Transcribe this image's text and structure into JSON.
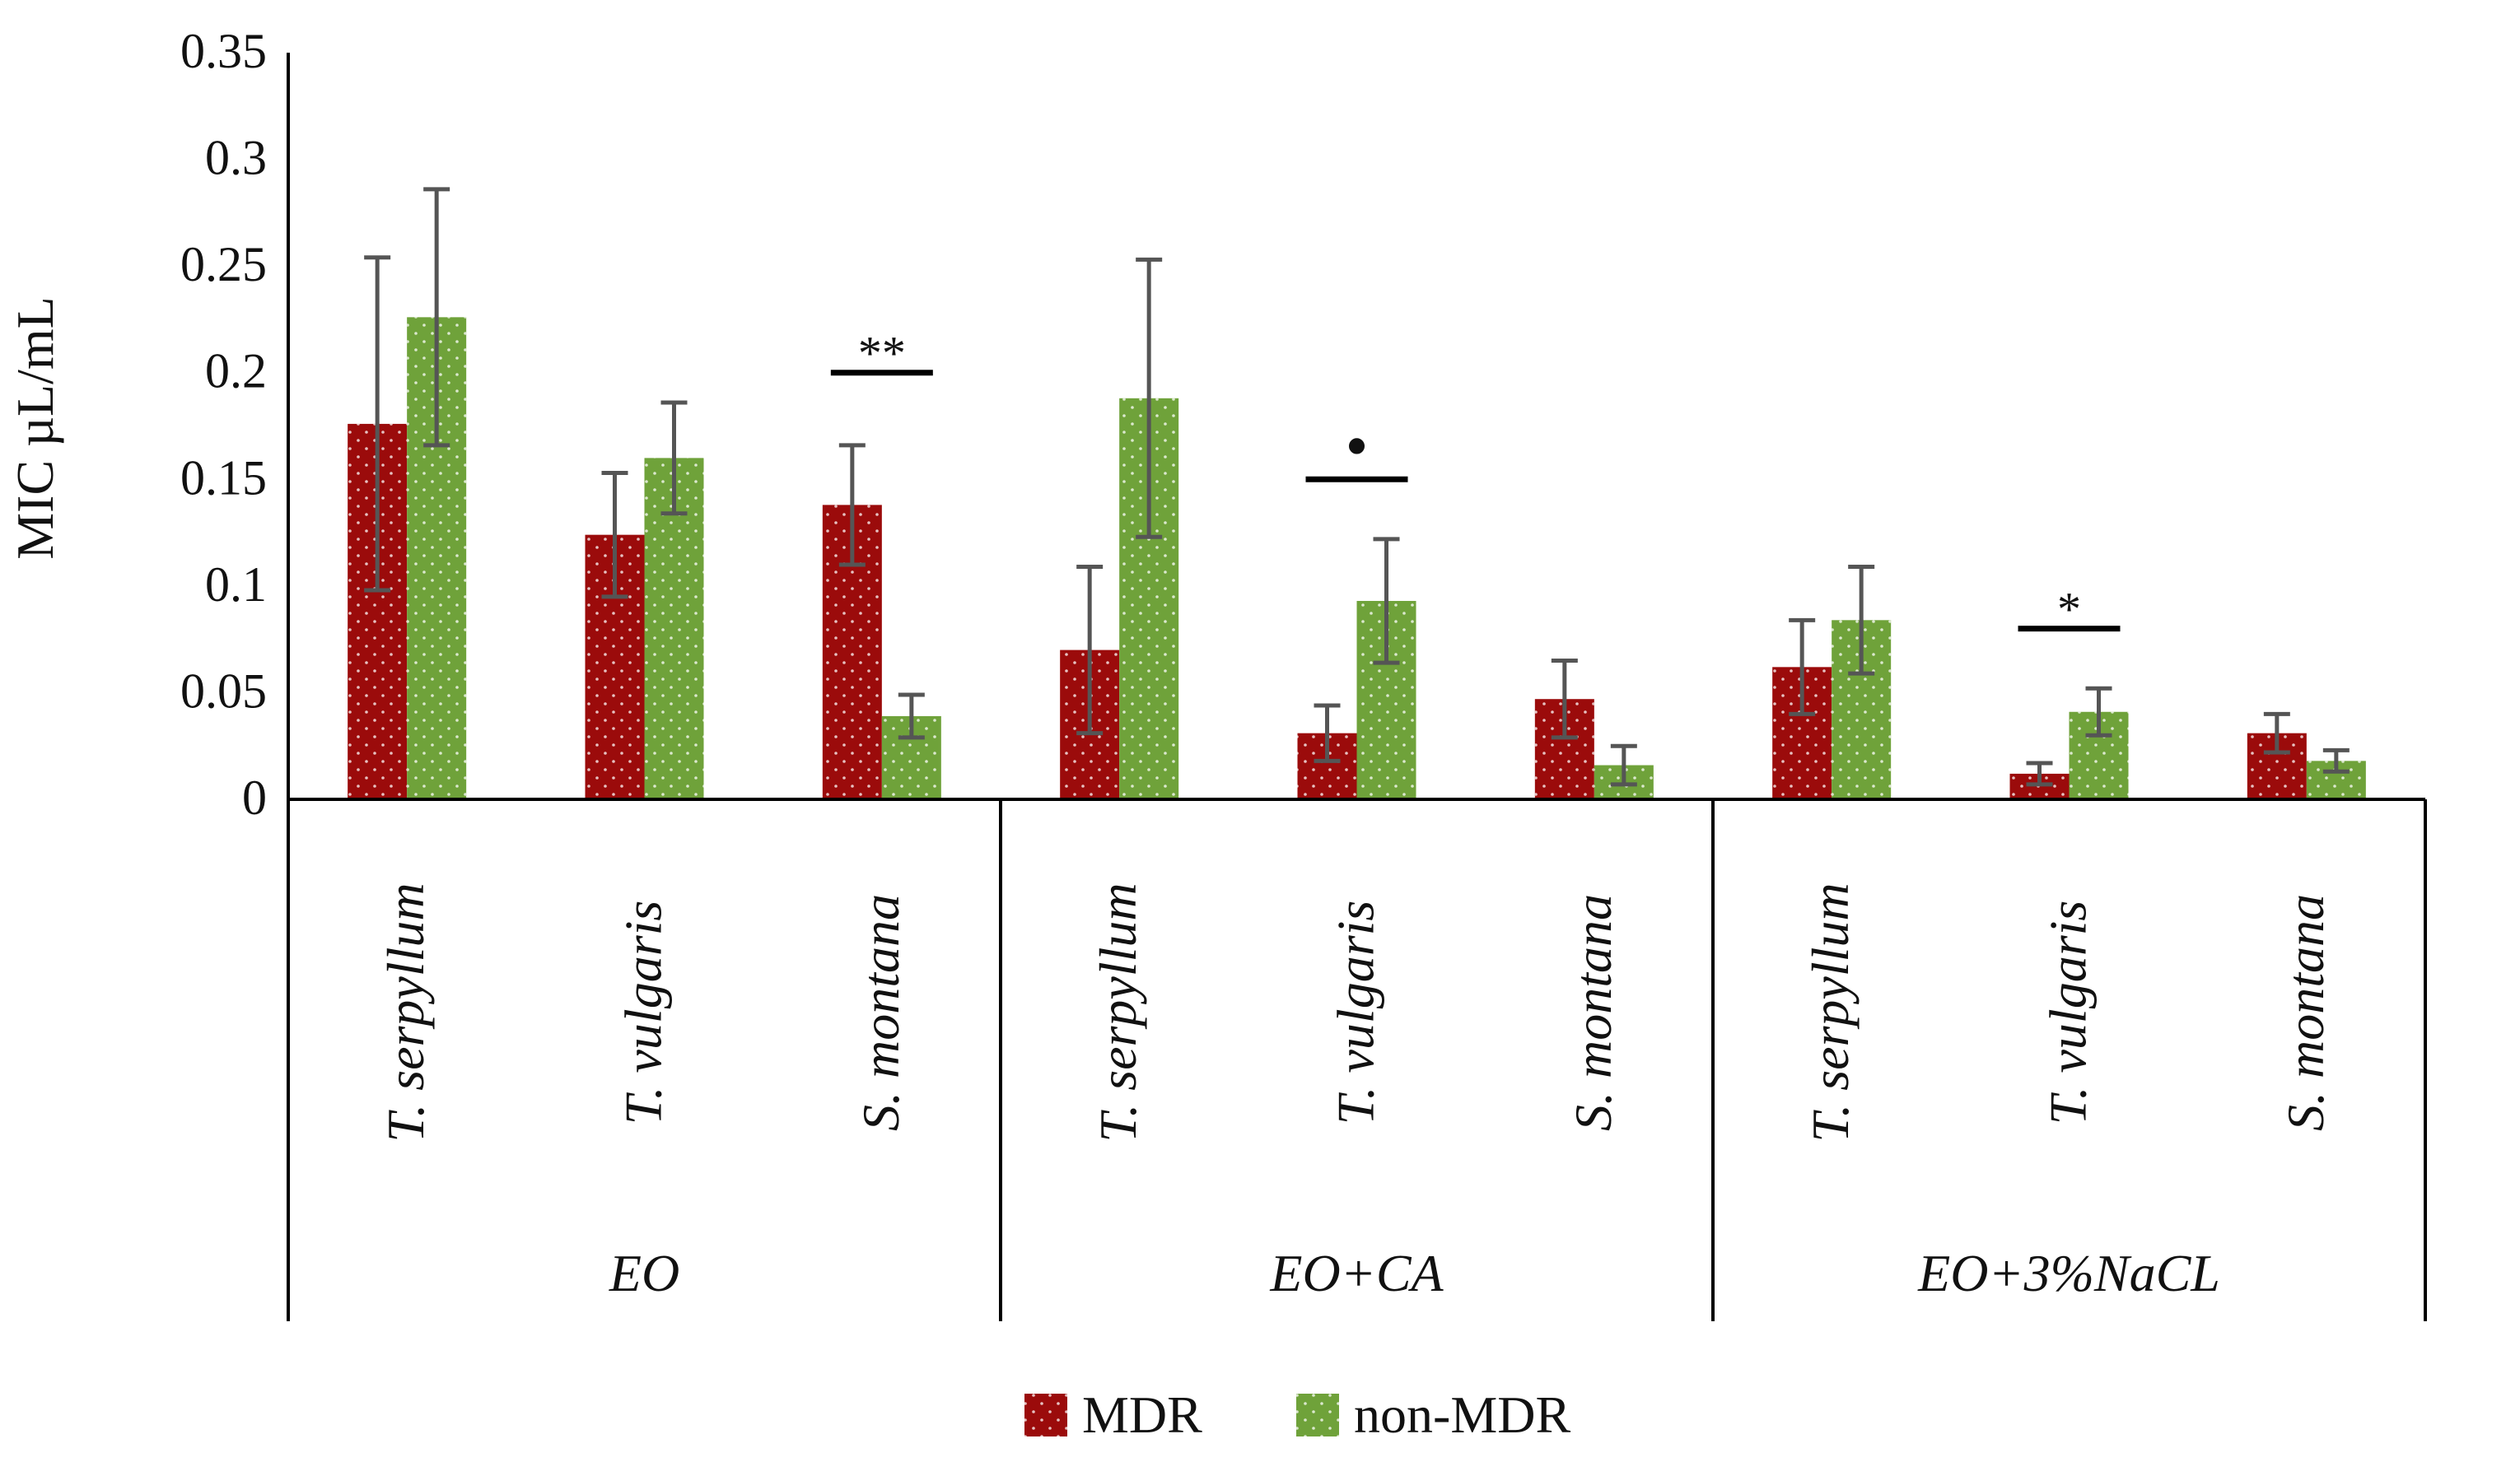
{
  "chart_data": {
    "type": "bar",
    "ylabel": "MIC µL/mL",
    "ylim": [
      0,
      0.35
    ],
    "yticks": [
      {
        "value": 0,
        "label": "0"
      },
      {
        "value": 0.05,
        "label": "0.05"
      },
      {
        "value": 0.1,
        "label": "0.1"
      },
      {
        "value": 0.15,
        "label": "0.15"
      },
      {
        "value": 0.2,
        "label": "0.2"
      },
      {
        "value": 0.25,
        "label": "0.25"
      },
      {
        "value": 0.3,
        "label": "0.3"
      },
      {
        "value": 0.35,
        "label": "0.35"
      }
    ],
    "groups": [
      "EO",
      "EO+CA",
      "EO+3%NaCL"
    ],
    "categories": [
      {
        "label": "T. serpyllum",
        "group": 0
      },
      {
        "label": "T. vulgaris",
        "group": 0
      },
      {
        "label": "S. montana",
        "group": 0
      },
      {
        "label": "T. serpyllum",
        "group": 1
      },
      {
        "label": "T. vulgaris",
        "group": 1
      },
      {
        "label": "S. montana",
        "group": 1
      },
      {
        "label": "T. serpyllum",
        "group": 2
      },
      {
        "label": "T. vulgaris",
        "group": 2
      },
      {
        "label": "S. montana",
        "group": 2
      }
    ],
    "series": [
      {
        "name": "MDR",
        "color": "#9b0b0b",
        "values": [
          0.176,
          0.124,
          0.138,
          0.07,
          0.031,
          0.047,
          0.062,
          0.012,
          0.031
        ],
        "errors": [
          0.078,
          0.029,
          0.028,
          0.039,
          0.013,
          0.018,
          0.022,
          0.005,
          0.009
        ]
      },
      {
        "name": "non-MDR",
        "color": "#6fa23a",
        "values": [
          0.226,
          0.16,
          0.039,
          0.188,
          0.093,
          0.016,
          0.084,
          0.041,
          0.018
        ],
        "errors": [
          0.06,
          0.026,
          0.01,
          0.065,
          0.029,
          0.009,
          0.025,
          0.011,
          0.005
        ]
      }
    ],
    "annotations": [
      {
        "category": 2,
        "text": "**",
        "value": 0.2
      },
      {
        "category": 4,
        "text": "•",
        "value": 0.15
      },
      {
        "category": 7,
        "text": "*",
        "value": 0.08
      }
    ],
    "legend": {
      "position": "bottom"
    }
  }
}
